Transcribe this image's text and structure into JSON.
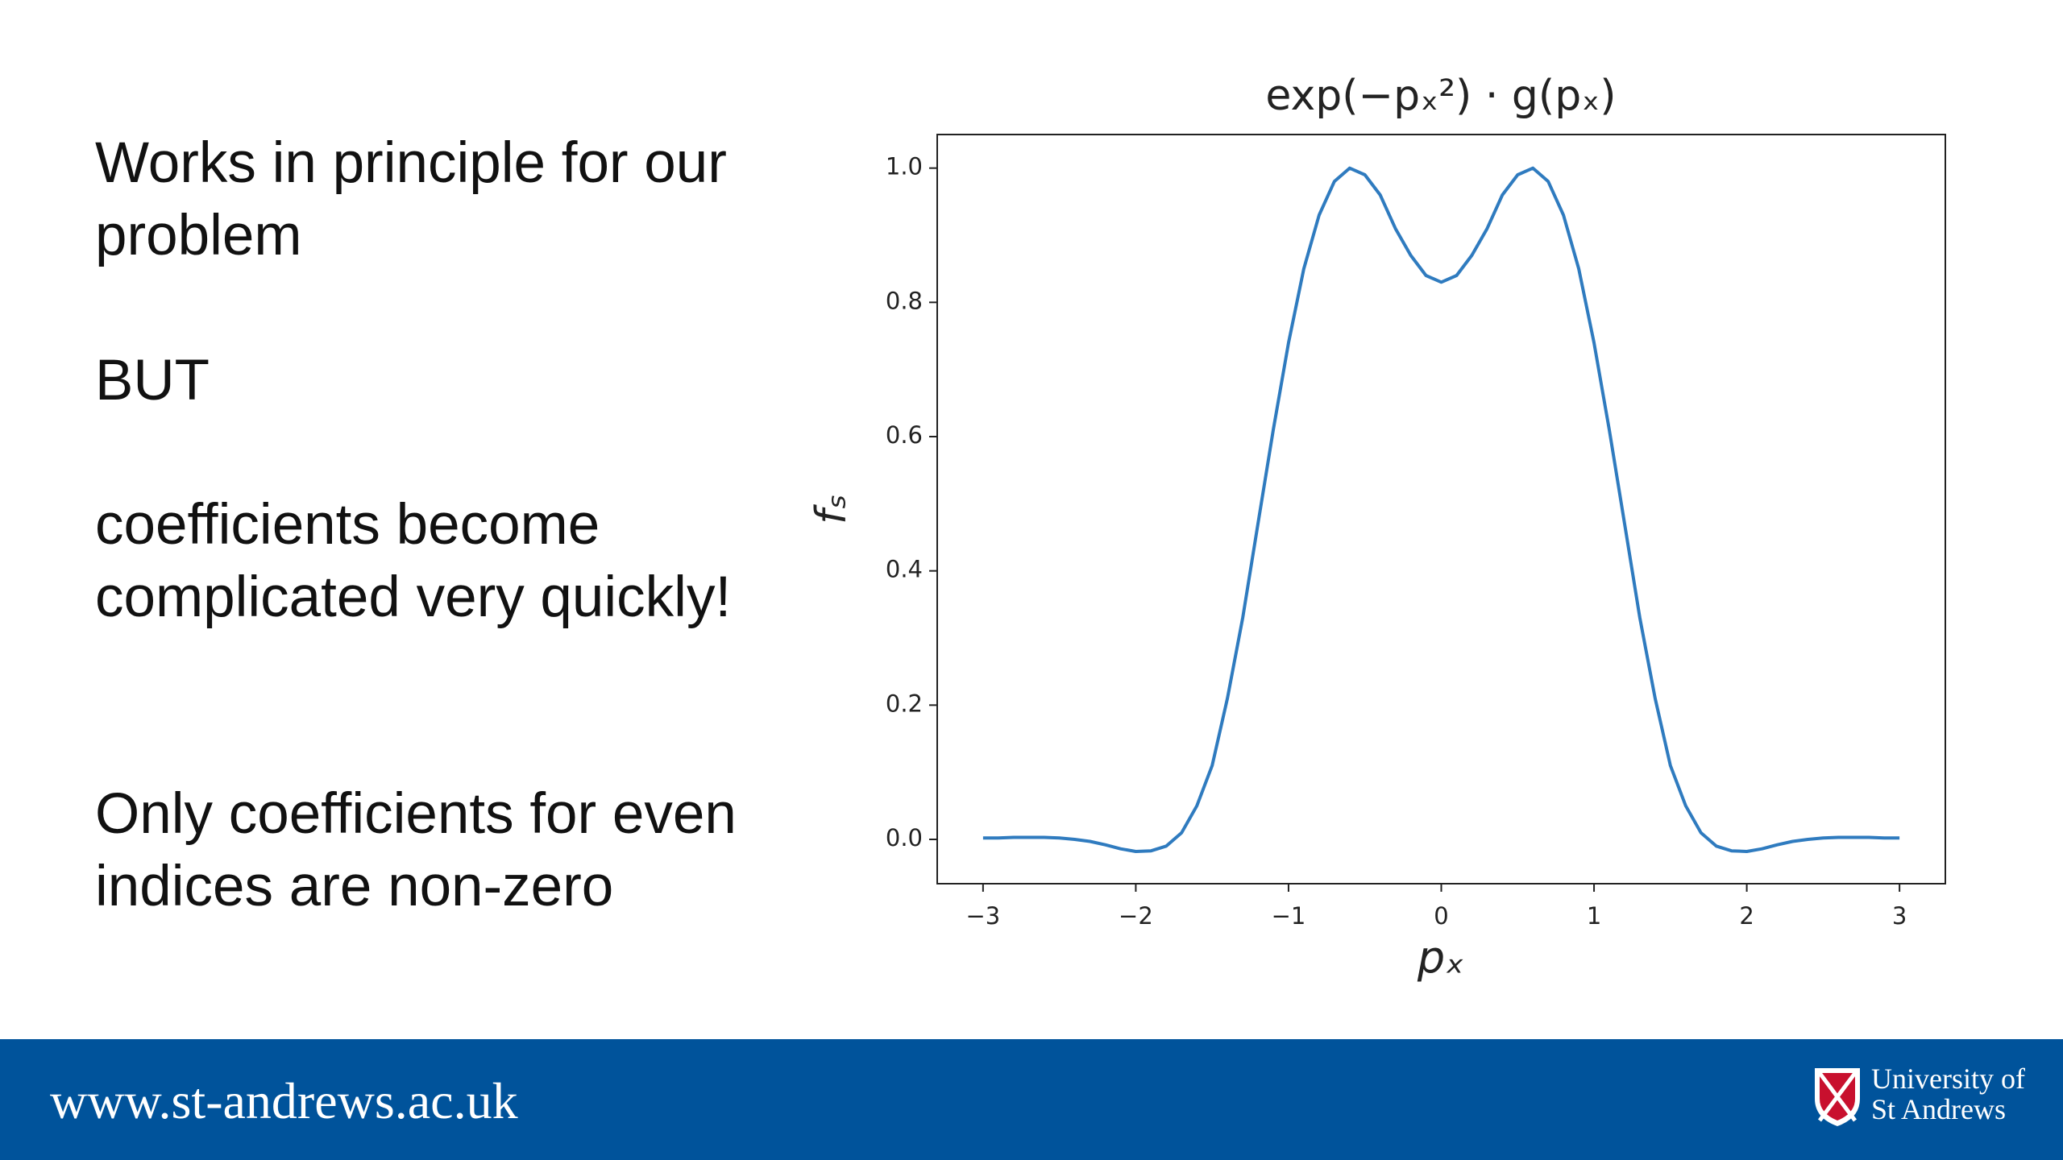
{
  "slide": {
    "blocks": [
      "Works in principle for our problem",
      "BUT",
      "coefficients become complicated very quickly!",
      "Only coefficients for even indices are non-zero"
    ]
  },
  "footer": {
    "url": "www.st-andrews.ac.uk",
    "logo": [
      "University of",
      "St Andrews"
    ]
  },
  "chart_data": {
    "type": "line",
    "title": "exp(−pₓ²) · g(pₓ)",
    "xlabel": "pₓ",
    "ylabel": "fₛ",
    "color": "#2f7bbf",
    "x": [
      -3.0,
      -2.9,
      -2.8,
      -2.7,
      -2.6,
      -2.5,
      -2.4,
      -2.3,
      -2.2,
      -2.1,
      -2.0,
      -1.9,
      -1.8,
      -1.7,
      -1.6,
      -1.5,
      -1.4,
      -1.3,
      -1.2,
      -1.1,
      -1.0,
      -0.9,
      -0.8,
      -0.7,
      -0.6,
      -0.5,
      -0.4,
      -0.3,
      -0.2,
      -0.1,
      0.0,
      0.1,
      0.2,
      0.3,
      0.4,
      0.5,
      0.6,
      0.7,
      0.8,
      0.9,
      1.0,
      1.1,
      1.2,
      1.3,
      1.4,
      1.5,
      1.6,
      1.7,
      1.8,
      1.9,
      2.0,
      2.1,
      2.2,
      2.3,
      2.4,
      2.5,
      2.6,
      2.7,
      2.8,
      2.9,
      3.0
    ],
    "values": [
      0.002,
      0.002,
      0.003,
      0.003,
      0.003,
      0.002,
      0.0,
      -0.003,
      -0.008,
      -0.014,
      -0.018,
      -0.017,
      -0.01,
      0.01,
      0.05,
      0.11,
      0.21,
      0.33,
      0.47,
      0.61,
      0.74,
      0.85,
      0.93,
      0.98,
      1.0,
      0.99,
      0.96,
      0.91,
      0.87,
      0.84,
      0.83,
      0.84,
      0.87,
      0.91,
      0.96,
      0.99,
      1.0,
      0.98,
      0.93,
      0.85,
      0.74,
      0.61,
      0.47,
      0.33,
      0.21,
      0.11,
      0.05,
      0.01,
      -0.01,
      -0.017,
      -0.018,
      -0.014,
      -0.008,
      -0.003,
      0.0,
      0.002,
      0.003,
      0.003,
      0.003,
      0.002,
      0.002
    ],
    "xlim": [
      -3.3,
      3.3
    ],
    "ylim": [
      -0.066,
      1.05
    ],
    "xticks": [
      {
        "value": -3,
        "label": "−3"
      },
      {
        "value": -2,
        "label": "−2"
      },
      {
        "value": -1,
        "label": "−1"
      },
      0,
      1,
      2,
      3
    ],
    "yticks": [
      {
        "value": 0,
        "label": "0.0"
      },
      0.2,
      0.4,
      0.6,
      0.8,
      {
        "value": 1,
        "label": "1.0"
      }
    ],
    "grid": false
  }
}
